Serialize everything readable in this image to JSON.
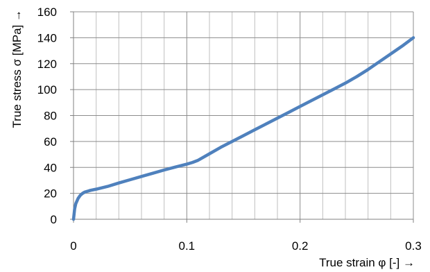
{
  "chart_data": {
    "type": "line",
    "title": "",
    "xlabel": "True strain φ [-] →",
    "ylabel": "True stress σ [MPa] →",
    "xlim": [
      0,
      0.3
    ],
    "ylim": [
      0,
      160
    ],
    "x_ticks": [
      0,
      0.1,
      0.2,
      0.3
    ],
    "x_tick_labels": [
      "0",
      "0.1",
      "0.2",
      "0.3"
    ],
    "x_minor_step": 0.02,
    "y_ticks": [
      0,
      20,
      40,
      60,
      80,
      100,
      120,
      140,
      160
    ],
    "y_tick_labels": [
      "0",
      "20",
      "40",
      "60",
      "80",
      "100",
      "120",
      "140",
      "160"
    ],
    "grid": true,
    "series": [
      {
        "color": "#4f81bd",
        "x": [
          0,
          0.001,
          0.002,
          0.004,
          0.006,
          0.008,
          0.01,
          0.015,
          0.02,
          0.03,
          0.04,
          0.05,
          0.06,
          0.07,
          0.08,
          0.09,
          0.1,
          0.105,
          0.11,
          0.12,
          0.13,
          0.14,
          0.15,
          0.16,
          0.17,
          0.18,
          0.19,
          0.2,
          0.21,
          0.22,
          0.23,
          0.24,
          0.25,
          0.26,
          0.27,
          0.28,
          0.29,
          0.3
        ],
        "y": [
          0,
          8,
          12,
          16,
          18.5,
          20,
          21,
          22.3,
          23.2,
          25.3,
          28,
          30.5,
          33,
          35.5,
          38,
          40.3,
          42.5,
          43.8,
          45.5,
          50.5,
          55.5,
          60,
          64.5,
          69,
          73.5,
          78,
          82.5,
          87,
          91.5,
          96,
          100.5,
          105,
          110,
          115.5,
          121.5,
          127.5,
          133.5,
          140
        ]
      }
    ]
  }
}
